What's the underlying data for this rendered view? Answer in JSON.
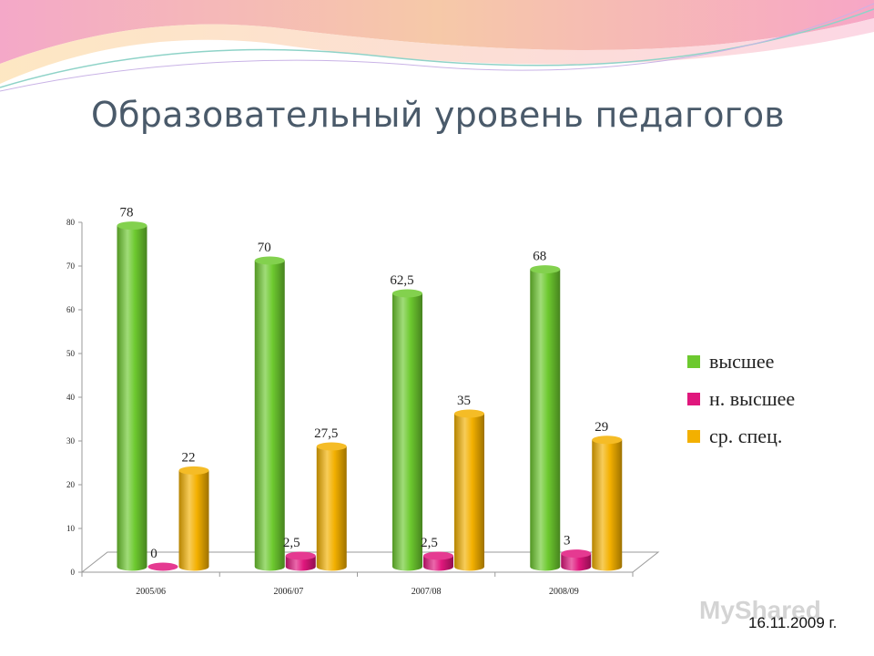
{
  "slide": {
    "title": "Образовательный уровень педагогов",
    "date": "16.11.2009 г.",
    "watermark": "MyShared"
  },
  "chart_data": {
    "type": "bar",
    "title": "",
    "xlabel": "",
    "ylabel": "",
    "categories": [
      "2005/06",
      "2006/07",
      "2007/08",
      "2008/09"
    ],
    "ylim": [
      0,
      80
    ],
    "yticks": [
      "0",
      "10",
      "20",
      "30",
      "40",
      "50",
      "60",
      "70",
      "80"
    ],
    "legend_position": "right",
    "grid": false,
    "series": [
      {
        "name": "высшее",
        "color": "#6dc92f",
        "values": [
          78,
          70,
          62.5,
          68
        ],
        "labels": [
          "78",
          "70",
          "62,5",
          "68"
        ]
      },
      {
        "name": "н. высшее",
        "color": "#e0177d",
        "values": [
          0,
          2.5,
          2.5,
          3
        ],
        "labels": [
          "0",
          "2,5",
          "2,5",
          "3"
        ]
      },
      {
        "name": "ср. спец.",
        "color": "#f3b000",
        "values": [
          22,
          27.5,
          35,
          29
        ],
        "labels": [
          "22",
          "27,5",
          "35",
          "29"
        ]
      }
    ]
  }
}
